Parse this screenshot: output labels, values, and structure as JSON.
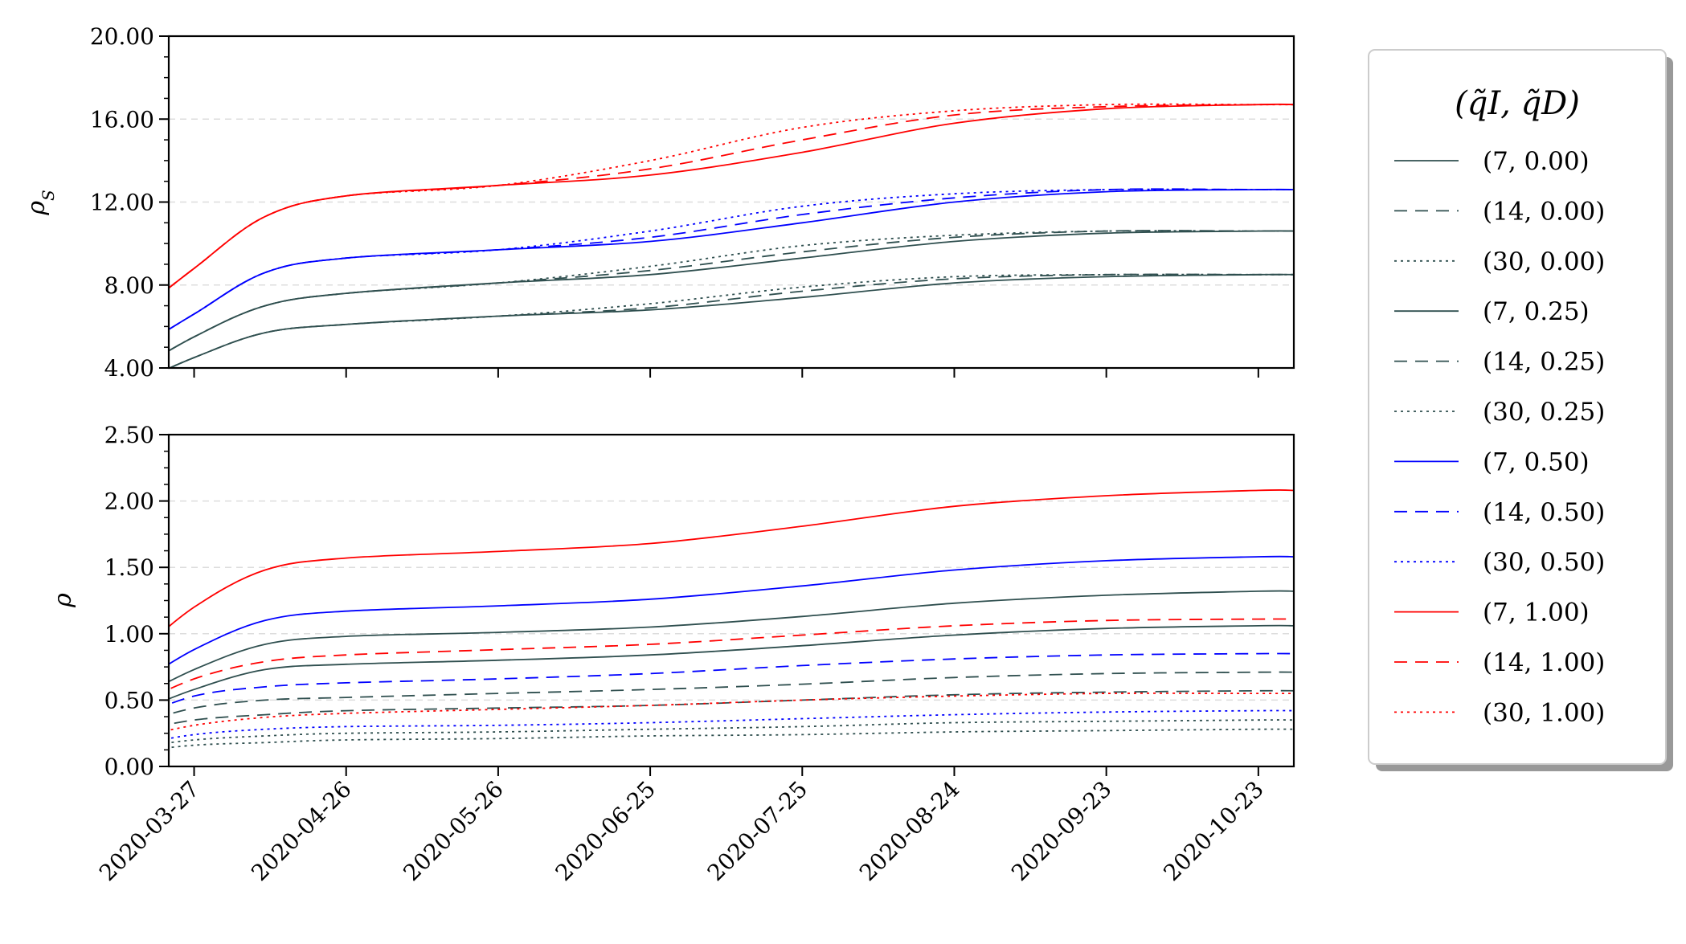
{
  "chart_data": [
    {
      "type": "line",
      "ylabel": "ρS",
      "ylabel_main": "ρ",
      "ylabel_sub": "S",
      "ylim": [
        4.0,
        20.0
      ],
      "yticks": [
        "4.00",
        "8.00",
        "12.00",
        "16.00",
        "20.00"
      ],
      "grid": "horizontal dashed",
      "x_dates": [
        "2020-03-15",
        "2020-03-27",
        "2020-04-10",
        "2020-04-26",
        "2020-05-26",
        "2020-06-25",
        "2020-07-25",
        "2020-08-24",
        "2020-09-23",
        "2020-10-23",
        "2020-10-30"
      ],
      "series": [
        {
          "name": "(7, 0.00)",
          "color": "#2f4f4f",
          "dash": "solid",
          "values": [
            3.2,
            4.5,
            5.7,
            6.1,
            6.5,
            6.8,
            7.4,
            8.1,
            8.4,
            8.5,
            8.5
          ]
        },
        {
          "name": "(14, 0.00)",
          "color": "#2f4f4f",
          "dash": "dashed",
          "values": [
            3.2,
            4.5,
            5.7,
            6.1,
            6.5,
            6.9,
            7.7,
            8.3,
            8.5,
            8.5,
            8.5
          ]
        },
        {
          "name": "(30, 0.00)",
          "color": "#2f4f4f",
          "dash": "dotted",
          "values": [
            3.2,
            4.5,
            5.7,
            6.1,
            6.5,
            7.1,
            7.9,
            8.4,
            8.5,
            8.5,
            8.5
          ]
        },
        {
          "name": "(7, 0.25)",
          "color": "#2f4f4f",
          "dash": "solid",
          "values": [
            3.8,
            5.5,
            7.0,
            7.6,
            8.1,
            8.5,
            9.3,
            10.1,
            10.5,
            10.6,
            10.6
          ]
        },
        {
          "name": "(14, 0.25)",
          "color": "#2f4f4f",
          "dash": "dashed",
          "values": [
            3.8,
            5.5,
            7.0,
            7.6,
            8.1,
            8.7,
            9.6,
            10.3,
            10.6,
            10.6,
            10.6
          ]
        },
        {
          "name": "(30, 0.25)",
          "color": "#2f4f4f",
          "dash": "dotted",
          "values": [
            3.8,
            5.5,
            7.0,
            7.6,
            8.1,
            8.9,
            9.9,
            10.4,
            10.6,
            10.6,
            10.6
          ]
        },
        {
          "name": "(7, 0.50)",
          "color": "#0000ff",
          "dash": "solid",
          "values": [
            4.8,
            6.6,
            8.6,
            9.3,
            9.7,
            10.1,
            11.0,
            12.0,
            12.5,
            12.6,
            12.6
          ]
        },
        {
          "name": "(14, 0.50)",
          "color": "#0000ff",
          "dash": "dashed",
          "values": [
            4.8,
            6.6,
            8.6,
            9.3,
            9.7,
            10.3,
            11.4,
            12.2,
            12.6,
            12.6,
            12.6
          ]
        },
        {
          "name": "(30, 0.50)",
          "color": "#0000ff",
          "dash": "dotted",
          "values": [
            4.8,
            6.6,
            8.6,
            9.3,
            9.7,
            10.6,
            11.8,
            12.4,
            12.6,
            12.6,
            12.6
          ]
        },
        {
          "name": "(7, 1.00)",
          "color": "#ff0000",
          "dash": "solid",
          "values": [
            6.5,
            8.8,
            11.3,
            12.3,
            12.8,
            13.3,
            14.4,
            15.8,
            16.5,
            16.7,
            16.7
          ]
        },
        {
          "name": "(14, 1.00)",
          "color": "#ff0000",
          "dash": "dashed",
          "values": [
            6.5,
            8.8,
            11.3,
            12.3,
            12.8,
            13.6,
            15.0,
            16.2,
            16.6,
            16.7,
            16.7
          ]
        },
        {
          "name": "(30, 1.00)",
          "color": "#ff0000",
          "dash": "dotted",
          "values": [
            6.5,
            8.8,
            11.3,
            12.3,
            12.8,
            14.0,
            15.6,
            16.4,
            16.7,
            16.7,
            16.7
          ]
        }
      ]
    },
    {
      "type": "line",
      "ylabel": "ρ",
      "ylim": [
        0.0,
        2.5
      ],
      "yticks": [
        "0.00",
        "0.50",
        "1.00",
        "1.50",
        "2.00",
        "2.50"
      ],
      "grid": "horizontal dashed",
      "x_dates": [
        "2020-03-15",
        "2020-03-27",
        "2020-04-10",
        "2020-04-26",
        "2020-05-26",
        "2020-06-25",
        "2020-07-25",
        "2020-08-24",
        "2020-09-23",
        "2020-10-23",
        "2020-10-30"
      ],
      "series": [
        {
          "name": "(7, 0.00)",
          "color": "#2f4f4f",
          "dash": "solid",
          "values": [
            0.4,
            0.58,
            0.73,
            0.77,
            0.8,
            0.84,
            0.91,
            0.99,
            1.04,
            1.06,
            1.06
          ]
        },
        {
          "name": "(14, 0.00)",
          "color": "#2f4f4f",
          "dash": "dashed",
          "values": [
            0.26,
            0.35,
            0.39,
            0.42,
            0.44,
            0.46,
            0.5,
            0.54,
            0.56,
            0.57,
            0.57
          ]
        },
        {
          "name": "(30, 0.00)",
          "color": "#2f4f4f",
          "dash": "dotted",
          "values": [
            0.11,
            0.16,
            0.18,
            0.2,
            0.21,
            0.23,
            0.24,
            0.26,
            0.27,
            0.28,
            0.28
          ]
        },
        {
          "name": "(7, 0.25)",
          "color": "#2f4f4f",
          "dash": "solid",
          "values": [
            0.5,
            0.73,
            0.92,
            0.98,
            1.01,
            1.05,
            1.13,
            1.23,
            1.29,
            1.32,
            1.32
          ]
        },
        {
          "name": "(14, 0.25)",
          "color": "#2f4f4f",
          "dash": "dashed",
          "values": [
            0.31,
            0.44,
            0.5,
            0.52,
            0.55,
            0.58,
            0.62,
            0.67,
            0.7,
            0.71,
            0.71
          ]
        },
        {
          "name": "(30, 0.25)",
          "color": "#2f4f4f",
          "dash": "dotted",
          "values": [
            0.14,
            0.2,
            0.23,
            0.25,
            0.26,
            0.28,
            0.3,
            0.33,
            0.34,
            0.35,
            0.35
          ]
        },
        {
          "name": "(7, 0.50)",
          "color": "#0000ff",
          "dash": "solid",
          "values": [
            0.6,
            0.88,
            1.1,
            1.17,
            1.21,
            1.26,
            1.36,
            1.48,
            1.55,
            1.58,
            1.58
          ]
        },
        {
          "name": "(14, 0.50)",
          "color": "#0000ff",
          "dash": "dashed",
          "values": [
            0.36,
            0.53,
            0.6,
            0.63,
            0.66,
            0.7,
            0.76,
            0.81,
            0.84,
            0.85,
            0.85
          ]
        },
        {
          "name": "(30, 0.50)",
          "color": "#0000ff",
          "dash": "dotted",
          "values": [
            0.16,
            0.24,
            0.28,
            0.3,
            0.31,
            0.33,
            0.36,
            0.39,
            0.41,
            0.42,
            0.42
          ]
        },
        {
          "name": "(7, 1.00)",
          "color": "#ff0000",
          "dash": "solid",
          "values": [
            0.82,
            1.2,
            1.48,
            1.57,
            1.62,
            1.68,
            1.81,
            1.96,
            2.04,
            2.08,
            2.08
          ]
        },
        {
          "name": "(14, 1.00)",
          "color": "#ff0000",
          "dash": "dashed",
          "values": [
            0.45,
            0.66,
            0.79,
            0.84,
            0.88,
            0.92,
            0.99,
            1.06,
            1.1,
            1.11,
            1.11
          ]
        },
        {
          "name": "(30, 1.00)",
          "color": "#ff0000",
          "dash": "dotted",
          "values": [
            0.21,
            0.31,
            0.37,
            0.4,
            0.43,
            0.46,
            0.5,
            0.53,
            0.55,
            0.55,
            0.55
          ]
        }
      ]
    }
  ],
  "xticks": [
    "2020-03-27",
    "2020-04-26",
    "2020-05-26",
    "2020-06-25",
    "2020-07-25",
    "2020-08-24",
    "2020-09-23",
    "2020-10-23"
  ],
  "x_range": [
    "2020-03-22",
    "2020-10-30"
  ],
  "legend": {
    "title": "(q̃I, q̃D)",
    "placement": "right, outside plot"
  }
}
